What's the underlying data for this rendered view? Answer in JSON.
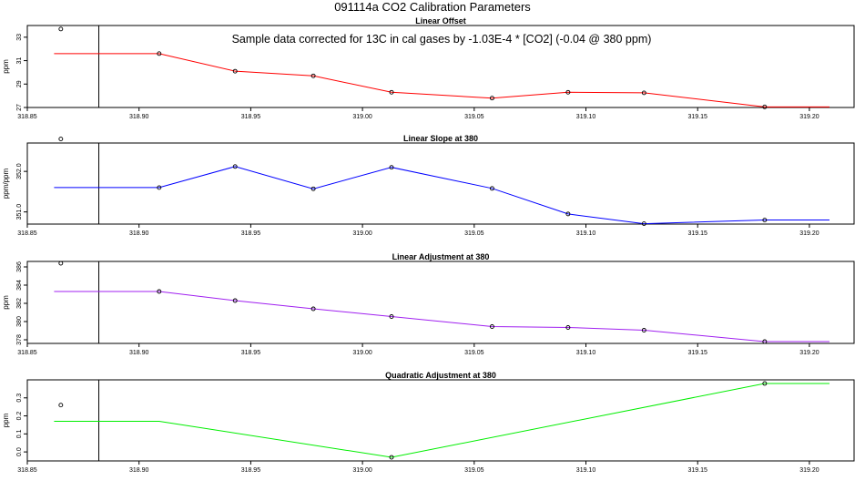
{
  "title": "091114a   CO2 Calibration Parameters",
  "annotation": "Sample data corrected for 13C in cal gases by -1.03E-4 * [CO2] (-0.04 @ 380 ppm)",
  "chart_data": [
    {
      "type": "line",
      "title": "Linear Offset",
      "ylabel": "ppm",
      "color": "#ff0000",
      "xlim": [
        318.85,
        319.22
      ],
      "ylim": [
        27,
        34
      ],
      "xticks": [
        318.85,
        318.9,
        318.95,
        319.0,
        319.05,
        319.1,
        319.15,
        319.2
      ],
      "yticks": [
        27,
        29,
        31,
        33
      ],
      "xtick_labels": [
        "318.85",
        "318.90",
        "318.95",
        "319.00",
        "319.05",
        "319.10",
        "319.15",
        "319.20"
      ],
      "ytick_labels": [
        "27",
        "29",
        "31",
        "33"
      ],
      "vline_x": 318.882,
      "line": {
        "x": [
          318.862,
          318.909,
          318.943,
          318.978,
          319.013,
          319.058,
          319.092,
          319.126,
          319.18,
          319.209
        ],
        "y": [
          31.6,
          31.6,
          30.1,
          29.7,
          28.3,
          27.8,
          28.3,
          28.25,
          27.05,
          27.05
        ]
      },
      "points": {
        "x": [
          318.865,
          318.909,
          318.943,
          318.978,
          319.013,
          319.058,
          319.092,
          319.126,
          319.18
        ],
        "y": [
          33.7,
          31.6,
          30.1,
          29.7,
          28.3,
          27.8,
          28.3,
          28.25,
          27.05
        ]
      }
    },
    {
      "type": "line",
      "title": "Linear Slope at 380",
      "ylabel": "ppm/ppm",
      "color": "#0000ff",
      "xlim": [
        318.85,
        319.22
      ],
      "ylim": [
        350.7,
        352.7
      ],
      "xticks": [
        318.85,
        318.9,
        318.95,
        319.0,
        319.05,
        319.1,
        319.15,
        319.2
      ],
      "yticks": [
        351.0,
        352.0
      ],
      "xtick_labels": [
        "318.85",
        "318.90",
        "318.95",
        "319.00",
        "319.05",
        "319.10",
        "319.15",
        "319.20"
      ],
      "ytick_labels": [
        "351.0",
        "352.0"
      ],
      "vline_x": 318.882,
      "line": {
        "x": [
          318.862,
          318.909,
          318.943,
          318.978,
          319.013,
          319.058,
          319.092,
          319.126,
          319.18,
          319.209
        ],
        "y": [
          351.6,
          351.6,
          352.12,
          351.57,
          352.1,
          351.58,
          350.95,
          350.71,
          350.8,
          350.8
        ]
      },
      "points": {
        "x": [
          318.865,
          318.909,
          318.943,
          318.978,
          319.013,
          319.058,
          319.092,
          319.126,
          319.18
        ],
        "y": [
          352.8,
          351.6,
          352.12,
          351.57,
          352.1,
          351.58,
          350.95,
          350.71,
          350.8
        ]
      }
    },
    {
      "type": "line",
      "title": "Linear Adjustment at 380",
      "ylabel": "ppm",
      "color": "#a020f0",
      "xlim": [
        318.85,
        319.22
      ],
      "ylim": [
        377.6,
        386.6
      ],
      "xticks": [
        318.85,
        318.9,
        318.95,
        319.0,
        319.05,
        319.1,
        319.15,
        319.2
      ],
      "yticks": [
        378,
        380,
        382,
        384,
        386
      ],
      "xtick_labels": [
        "318.85",
        "318.90",
        "318.95",
        "319.00",
        "319.05",
        "319.10",
        "319.15",
        "319.20"
      ],
      "ytick_labels": [
        "378",
        "380",
        "382",
        "384",
        "386"
      ],
      "vline_x": 318.882,
      "line": {
        "x": [
          318.862,
          318.909,
          318.943,
          318.978,
          319.013,
          319.058,
          319.092,
          319.126,
          319.18,
          319.209
        ],
        "y": [
          383.3,
          383.3,
          382.3,
          381.4,
          380.55,
          379.45,
          379.35,
          379.05,
          377.8,
          377.8
        ]
      },
      "points": {
        "x": [
          318.865,
          318.909,
          318.943,
          318.978,
          319.013,
          319.058,
          319.092,
          319.126,
          319.18
        ],
        "y": [
          386.4,
          383.3,
          382.3,
          381.4,
          380.55,
          379.45,
          379.35,
          379.05,
          377.8
        ]
      }
    },
    {
      "type": "line",
      "title": "Quadratic Adjustment at 380",
      "ylabel": "ppm",
      "color": "#00ee00",
      "xlim": [
        318.85,
        319.22
      ],
      "ylim": [
        -0.05,
        0.4
      ],
      "xticks": [
        318.85,
        318.9,
        318.95,
        319.0,
        319.05,
        319.1,
        319.15,
        319.2
      ],
      "yticks": [
        0.0,
        0.1,
        0.2,
        0.3
      ],
      "xtick_labels": [
        "318.85",
        "318.90",
        "318.95",
        "319.00",
        "319.05",
        "319.10",
        "319.15",
        "319.20"
      ],
      "ytick_labels": [
        "0.0",
        "0.1",
        "0.2",
        "0.3"
      ],
      "vline_x": 318.882,
      "line": {
        "x": [
          318.862,
          318.909,
          319.013,
          319.18,
          319.209
        ],
        "y": [
          0.17,
          0.17,
          -0.03,
          0.38,
          0.38
        ]
      },
      "points": {
        "x": [
          318.865,
          319.013,
          319.18
        ],
        "y": [
          0.26,
          -0.03,
          0.38
        ]
      }
    }
  ]
}
